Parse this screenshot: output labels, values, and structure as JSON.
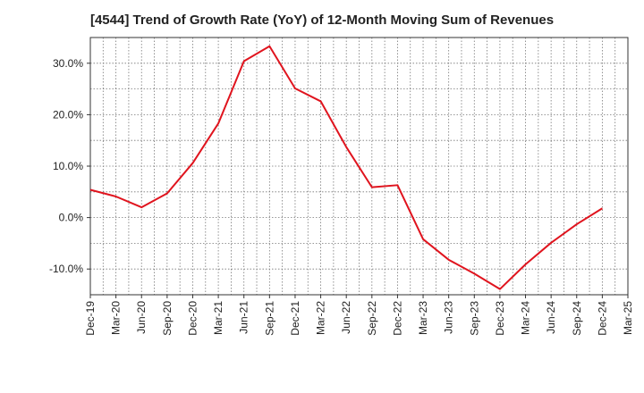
{
  "chart_data": {
    "type": "line",
    "title": "[4544]  Trend of Growth Rate (YoY) of 12-Month Moving Sum of Revenues",
    "xlabel": "",
    "ylabel": "",
    "x_ticks": [
      "Dec-19",
      "Mar-20",
      "Jun-20",
      "Sep-20",
      "Dec-20",
      "Mar-21",
      "Jun-21",
      "Sep-21",
      "Dec-21",
      "Mar-22",
      "Jun-22",
      "Sep-22",
      "Dec-22",
      "Mar-23",
      "Jun-23",
      "Sep-23",
      "Dec-23",
      "Mar-24",
      "Jun-24",
      "Sep-24",
      "Dec-24",
      "Mar-25"
    ],
    "y_ticks": [
      30,
      20,
      10,
      0,
      -10
    ],
    "y_tick_labels": [
      "30.0%",
      "20.0%",
      "10.0%",
      "0.0%",
      "-10.0%"
    ],
    "ylim": [
      -15,
      35
    ],
    "grid": true,
    "series": [
      {
        "color": "#e0141e",
        "x": [
          "Dec-19",
          "Mar-20",
          "Jun-20",
          "Sep-20",
          "Dec-20",
          "Mar-21",
          "Jun-21",
          "Sep-21",
          "Dec-21",
          "Mar-22",
          "Jun-22",
          "Sep-22",
          "Dec-22",
          "Mar-23",
          "Jun-23",
          "Sep-23",
          "Dec-23",
          "Mar-24",
          "Jun-24",
          "Sep-24",
          "Dec-24"
        ],
        "values": [
          5.4,
          4.1,
          2.0,
          4.7,
          10.6,
          18.3,
          30.4,
          33.3,
          25.1,
          22.6,
          13.7,
          5.9,
          6.3,
          -4.2,
          -8.2,
          -10.9,
          -13.9,
          -9.1,
          -4.9,
          -1.3,
          1.8
        ]
      }
    ]
  }
}
